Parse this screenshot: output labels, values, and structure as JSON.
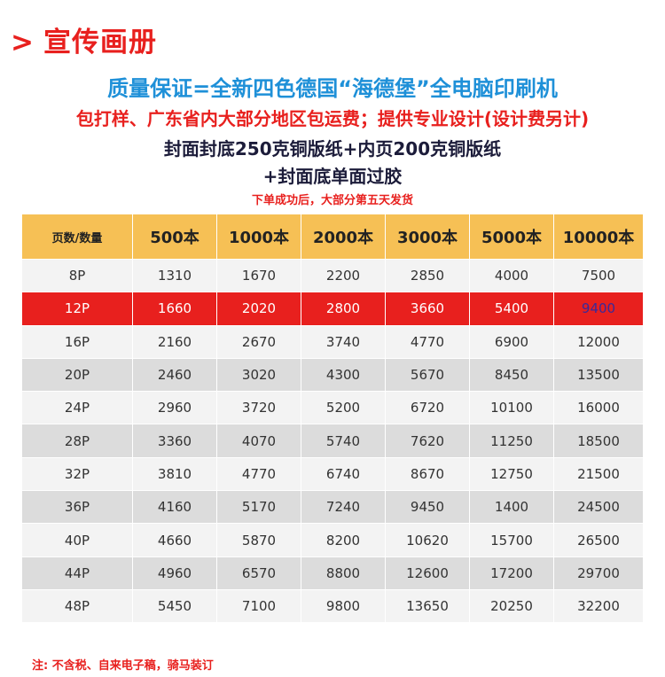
{
  "header": {
    "arrow": ">",
    "title": "宣传画册"
  },
  "lines": {
    "guarantee": "质量保证=全新四色德国“海德堡”全电脑印刷机",
    "service": "包打样、广东省内大部分地区包运费；提供专业设计(设计费另计)",
    "paper": "封面封底250克铜版纸+内页200克铜版纸",
    "lamination": "+封面底单面过胶",
    "delivery": "下单成功后，大部分第五天发货"
  },
  "table": {
    "corner": "页数/数量",
    "columns": [
      "500本",
      "1000本",
      "2000本",
      "3000本",
      "5000本",
      "10000本"
    ],
    "rows": [
      {
        "pages": "8P",
        "prices": [
          "1310",
          "1670",
          "2200",
          "2850",
          "4000",
          "7500"
        ]
      },
      {
        "pages": "12P",
        "prices": [
          "1660",
          "2020",
          "2800",
          "3660",
          "5400",
          "9400"
        ]
      },
      {
        "pages": "16P",
        "prices": [
          "2160",
          "2670",
          "3740",
          "4770",
          "6900",
          "12000"
        ]
      },
      {
        "pages": "20P",
        "prices": [
          "2460",
          "3020",
          "4300",
          "5670",
          "8450",
          "13500"
        ]
      },
      {
        "pages": "24P",
        "prices": [
          "2960",
          "3720",
          "5200",
          "6720",
          "10100",
          "16000"
        ]
      },
      {
        "pages": "28P",
        "prices": [
          "3360",
          "4070",
          "5740",
          "7620",
          "11250",
          "18500"
        ]
      },
      {
        "pages": "32P",
        "prices": [
          "3810",
          "4770",
          "6740",
          "8670",
          "12750",
          "21500"
        ]
      },
      {
        "pages": "36P",
        "prices": [
          "4160",
          "5170",
          "7240",
          "9450",
          "1400",
          "24500"
        ]
      },
      {
        "pages": "40P",
        "prices": [
          "4660",
          "5870",
          "8200",
          "10620",
          "15700",
          "26500"
        ]
      },
      {
        "pages": "44P",
        "prices": [
          "4960",
          "6570",
          "8800",
          "12600",
          "17200",
          "29700"
        ]
      },
      {
        "pages": "48P",
        "prices": [
          "5450",
          "7100",
          "9800",
          "13650",
          "20250",
          "32200"
        ]
      }
    ]
  },
  "footer": {
    "note": "注: 不含税、自来电子稿，骑马装订"
  },
  "colors": {
    "accent_red": "#e8201e",
    "accent_blue": "#1e90d8",
    "header_gold": "#f6c055"
  }
}
